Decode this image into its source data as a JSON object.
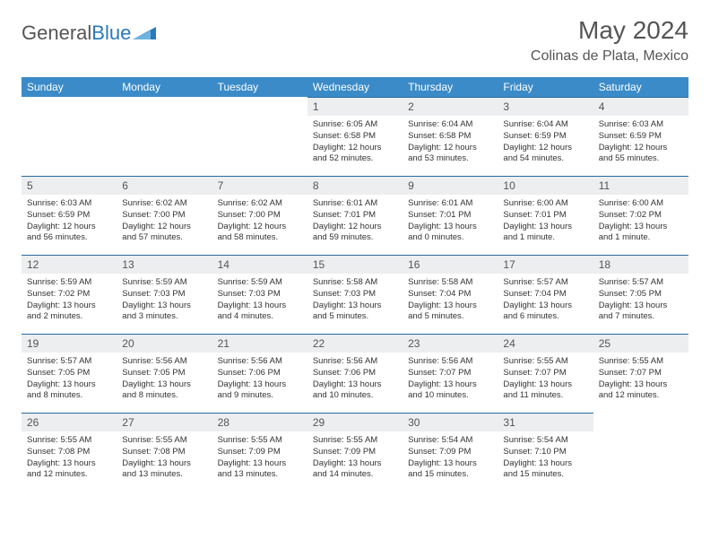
{
  "brand": {
    "text1": "General",
    "text2": "Blue"
  },
  "title": "May 2024",
  "location": "Colinas de Plata, Mexico",
  "colors": {
    "header_bg": "#3b8bc8",
    "header_text": "#ffffff",
    "daynum_bg": "#eceeef",
    "daynum_border": "#2a6aa0",
    "brand_blue": "#2a7ab9",
    "text": "#333333"
  },
  "days_of_week": [
    "Sunday",
    "Monday",
    "Tuesday",
    "Wednesday",
    "Thursday",
    "Friday",
    "Saturday"
  ],
  "weeks": [
    [
      null,
      null,
      null,
      {
        "n": "1",
        "sr": "Sunrise: 6:05 AM",
        "ss": "Sunset: 6:58 PM",
        "dl": "Daylight: 12 hours and 52 minutes."
      },
      {
        "n": "2",
        "sr": "Sunrise: 6:04 AM",
        "ss": "Sunset: 6:58 PM",
        "dl": "Daylight: 12 hours and 53 minutes."
      },
      {
        "n": "3",
        "sr": "Sunrise: 6:04 AM",
        "ss": "Sunset: 6:59 PM",
        "dl": "Daylight: 12 hours and 54 minutes."
      },
      {
        "n": "4",
        "sr": "Sunrise: 6:03 AM",
        "ss": "Sunset: 6:59 PM",
        "dl": "Daylight: 12 hours and 55 minutes."
      }
    ],
    [
      {
        "n": "5",
        "sr": "Sunrise: 6:03 AM",
        "ss": "Sunset: 6:59 PM",
        "dl": "Daylight: 12 hours and 56 minutes."
      },
      {
        "n": "6",
        "sr": "Sunrise: 6:02 AM",
        "ss": "Sunset: 7:00 PM",
        "dl": "Daylight: 12 hours and 57 minutes."
      },
      {
        "n": "7",
        "sr": "Sunrise: 6:02 AM",
        "ss": "Sunset: 7:00 PM",
        "dl": "Daylight: 12 hours and 58 minutes."
      },
      {
        "n": "8",
        "sr": "Sunrise: 6:01 AM",
        "ss": "Sunset: 7:01 PM",
        "dl": "Daylight: 12 hours and 59 minutes."
      },
      {
        "n": "9",
        "sr": "Sunrise: 6:01 AM",
        "ss": "Sunset: 7:01 PM",
        "dl": "Daylight: 13 hours and 0 minutes."
      },
      {
        "n": "10",
        "sr": "Sunrise: 6:00 AM",
        "ss": "Sunset: 7:01 PM",
        "dl": "Daylight: 13 hours and 1 minute."
      },
      {
        "n": "11",
        "sr": "Sunrise: 6:00 AM",
        "ss": "Sunset: 7:02 PM",
        "dl": "Daylight: 13 hours and 1 minute."
      }
    ],
    [
      {
        "n": "12",
        "sr": "Sunrise: 5:59 AM",
        "ss": "Sunset: 7:02 PM",
        "dl": "Daylight: 13 hours and 2 minutes."
      },
      {
        "n": "13",
        "sr": "Sunrise: 5:59 AM",
        "ss": "Sunset: 7:03 PM",
        "dl": "Daylight: 13 hours and 3 minutes."
      },
      {
        "n": "14",
        "sr": "Sunrise: 5:59 AM",
        "ss": "Sunset: 7:03 PM",
        "dl": "Daylight: 13 hours and 4 minutes."
      },
      {
        "n": "15",
        "sr": "Sunrise: 5:58 AM",
        "ss": "Sunset: 7:03 PM",
        "dl": "Daylight: 13 hours and 5 minutes."
      },
      {
        "n": "16",
        "sr": "Sunrise: 5:58 AM",
        "ss": "Sunset: 7:04 PM",
        "dl": "Daylight: 13 hours and 5 minutes."
      },
      {
        "n": "17",
        "sr": "Sunrise: 5:57 AM",
        "ss": "Sunset: 7:04 PM",
        "dl": "Daylight: 13 hours and 6 minutes."
      },
      {
        "n": "18",
        "sr": "Sunrise: 5:57 AM",
        "ss": "Sunset: 7:05 PM",
        "dl": "Daylight: 13 hours and 7 minutes."
      }
    ],
    [
      {
        "n": "19",
        "sr": "Sunrise: 5:57 AM",
        "ss": "Sunset: 7:05 PM",
        "dl": "Daylight: 13 hours and 8 minutes."
      },
      {
        "n": "20",
        "sr": "Sunrise: 5:56 AM",
        "ss": "Sunset: 7:05 PM",
        "dl": "Daylight: 13 hours and 8 minutes."
      },
      {
        "n": "21",
        "sr": "Sunrise: 5:56 AM",
        "ss": "Sunset: 7:06 PM",
        "dl": "Daylight: 13 hours and 9 minutes."
      },
      {
        "n": "22",
        "sr": "Sunrise: 5:56 AM",
        "ss": "Sunset: 7:06 PM",
        "dl": "Daylight: 13 hours and 10 minutes."
      },
      {
        "n": "23",
        "sr": "Sunrise: 5:56 AM",
        "ss": "Sunset: 7:07 PM",
        "dl": "Daylight: 13 hours and 10 minutes."
      },
      {
        "n": "24",
        "sr": "Sunrise: 5:55 AM",
        "ss": "Sunset: 7:07 PM",
        "dl": "Daylight: 13 hours and 11 minutes."
      },
      {
        "n": "25",
        "sr": "Sunrise: 5:55 AM",
        "ss": "Sunset: 7:07 PM",
        "dl": "Daylight: 13 hours and 12 minutes."
      }
    ],
    [
      {
        "n": "26",
        "sr": "Sunrise: 5:55 AM",
        "ss": "Sunset: 7:08 PM",
        "dl": "Daylight: 13 hours and 12 minutes."
      },
      {
        "n": "27",
        "sr": "Sunrise: 5:55 AM",
        "ss": "Sunset: 7:08 PM",
        "dl": "Daylight: 13 hours and 13 minutes."
      },
      {
        "n": "28",
        "sr": "Sunrise: 5:55 AM",
        "ss": "Sunset: 7:09 PM",
        "dl": "Daylight: 13 hours and 13 minutes."
      },
      {
        "n": "29",
        "sr": "Sunrise: 5:55 AM",
        "ss": "Sunset: 7:09 PM",
        "dl": "Daylight: 13 hours and 14 minutes."
      },
      {
        "n": "30",
        "sr": "Sunrise: 5:54 AM",
        "ss": "Sunset: 7:09 PM",
        "dl": "Daylight: 13 hours and 15 minutes."
      },
      {
        "n": "31",
        "sr": "Sunrise: 5:54 AM",
        "ss": "Sunset: 7:10 PM",
        "dl": "Daylight: 13 hours and 15 minutes."
      },
      null
    ]
  ]
}
